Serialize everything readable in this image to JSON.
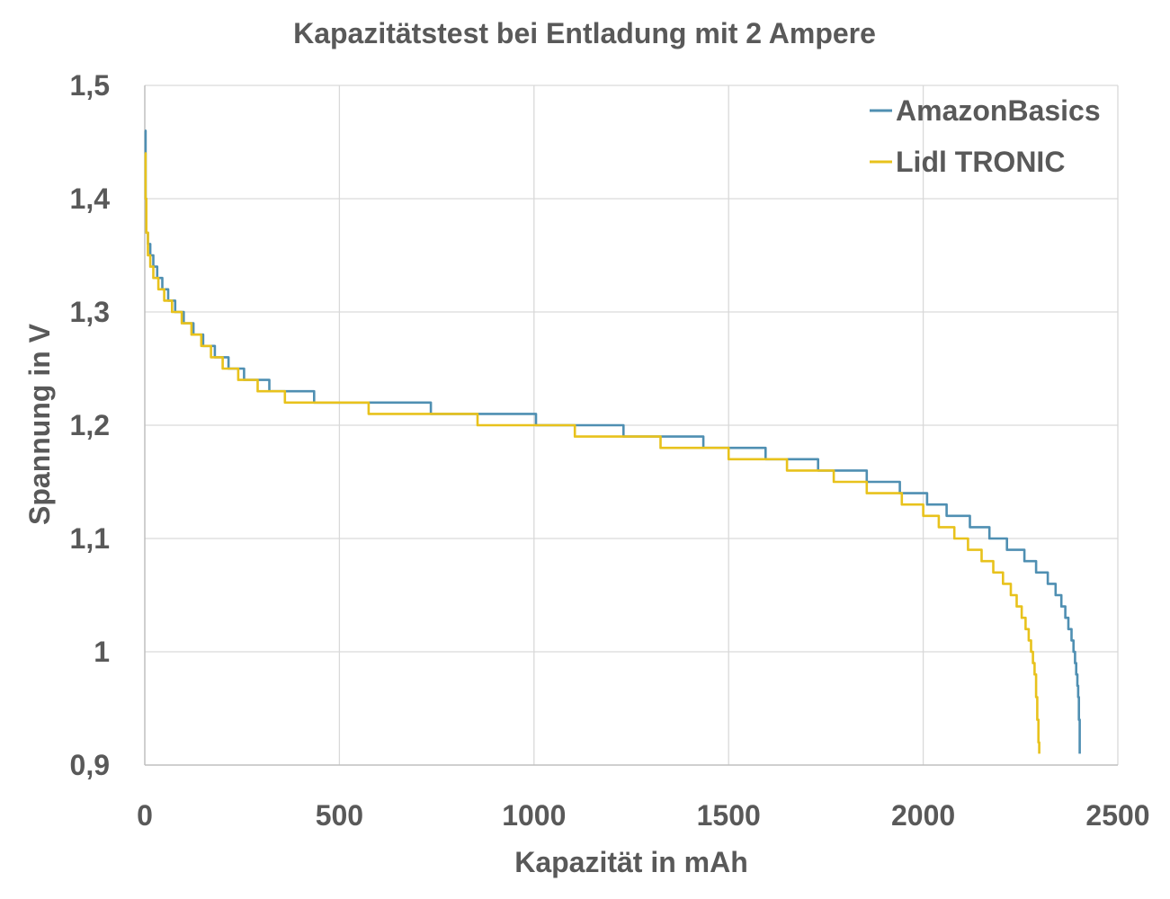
{
  "chart_data": {
    "type": "line",
    "title": "Kapazitätstest bei Entladung mit 2 Ampere",
    "xlabel": "Kapazität in mAh",
    "ylabel": "Spannung in V",
    "xlim": [
      0,
      2500
    ],
    "ylim": [
      0.9,
      1.5
    ],
    "x_ticks": [
      0,
      500,
      1000,
      1500,
      2000,
      2500
    ],
    "x_tick_labels": [
      "0",
      "500",
      "1000",
      "1500",
      "2000",
      "2500"
    ],
    "y_ticks": [
      0.9,
      1.0,
      1.1,
      1.2,
      1.3,
      1.4,
      1.5
    ],
    "y_tick_labels": [
      "0,9",
      "1",
      "1,1",
      "1,2",
      "1,3",
      "1,4",
      "1,5"
    ],
    "grid": true,
    "legend_position": "top-right",
    "series": [
      {
        "name": "AmazonBasics",
        "color": "#4f8fb2",
        "points": [
          [
            0,
            1.46
          ],
          [
            2,
            1.4
          ],
          [
            4,
            1.37
          ],
          [
            8,
            1.36
          ],
          [
            14,
            1.35
          ],
          [
            22,
            1.34
          ],
          [
            32,
            1.33
          ],
          [
            45,
            1.32
          ],
          [
            60,
            1.31
          ],
          [
            78,
            1.3
          ],
          [
            100,
            1.29
          ],
          [
            125,
            1.28
          ],
          [
            150,
            1.27
          ],
          [
            180,
            1.26
          ],
          [
            215,
            1.25
          ],
          [
            255,
            1.24
          ],
          [
            320,
            1.23
          ],
          [
            435,
            1.22
          ],
          [
            735,
            1.21
          ],
          [
            1005,
            1.2
          ],
          [
            1230,
            1.19
          ],
          [
            1435,
            1.18
          ],
          [
            1595,
            1.17
          ],
          [
            1730,
            1.16
          ],
          [
            1855,
            1.15
          ],
          [
            1940,
            1.14
          ],
          [
            2010,
            1.13
          ],
          [
            2060,
            1.12
          ],
          [
            2120,
            1.11
          ],
          [
            2170,
            1.1
          ],
          [
            2215,
            1.09
          ],
          [
            2260,
            1.08
          ],
          [
            2290,
            1.07
          ],
          [
            2320,
            1.06
          ],
          [
            2340,
            1.05
          ],
          [
            2355,
            1.04
          ],
          [
            2365,
            1.03
          ],
          [
            2373,
            1.02
          ],
          [
            2381,
            1.01
          ],
          [
            2386,
            1.0
          ],
          [
            2390,
            0.99
          ],
          [
            2393,
            0.98
          ],
          [
            2396,
            0.97
          ],
          [
            2398,
            0.96
          ],
          [
            2400,
            0.94
          ],
          [
            2402,
            0.91
          ]
        ]
      },
      {
        "name": "Lidl TRONIC",
        "color": "#e8c21c",
        "points": [
          [
            0,
            1.44
          ],
          [
            2,
            1.4
          ],
          [
            4,
            1.37
          ],
          [
            8,
            1.35
          ],
          [
            14,
            1.34
          ],
          [
            22,
            1.33
          ],
          [
            35,
            1.32
          ],
          [
            50,
            1.31
          ],
          [
            70,
            1.3
          ],
          [
            95,
            1.29
          ],
          [
            120,
            1.28
          ],
          [
            145,
            1.27
          ],
          [
            170,
            1.26
          ],
          [
            200,
            1.25
          ],
          [
            240,
            1.24
          ],
          [
            290,
            1.23
          ],
          [
            360,
            1.22
          ],
          [
            575,
            1.21
          ],
          [
            855,
            1.2
          ],
          [
            1105,
            1.19
          ],
          [
            1325,
            1.18
          ],
          [
            1500,
            1.17
          ],
          [
            1650,
            1.16
          ],
          [
            1770,
            1.15
          ],
          [
            1855,
            1.14
          ],
          [
            1945,
            1.13
          ],
          [
            2000,
            1.12
          ],
          [
            2040,
            1.11
          ],
          [
            2080,
            1.1
          ],
          [
            2115,
            1.09
          ],
          [
            2150,
            1.08
          ],
          [
            2180,
            1.07
          ],
          [
            2205,
            1.06
          ],
          [
            2225,
            1.05
          ],
          [
            2240,
            1.04
          ],
          [
            2253,
            1.03
          ],
          [
            2263,
            1.02
          ],
          [
            2271,
            1.01
          ],
          [
            2277,
            1.0
          ],
          [
            2282,
            0.99
          ],
          [
            2286,
            0.98
          ],
          [
            2290,
            0.96
          ],
          [
            2293,
            0.94
          ],
          [
            2296,
            0.92
          ],
          [
            2298,
            0.91
          ]
        ]
      }
    ]
  }
}
